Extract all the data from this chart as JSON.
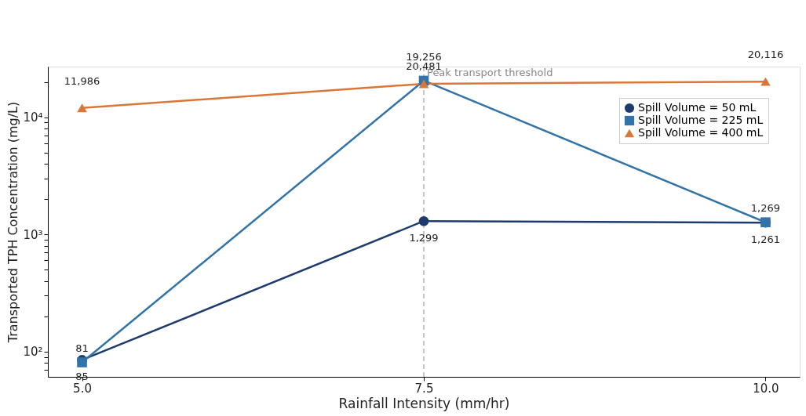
{
  "chart_data": {
    "type": "line",
    "xlabel": "Rainfall Intensity (mm/hr)",
    "ylabel": "Transported TPH Concentration (mg/L)",
    "x": [
      5.0,
      7.5,
      10.0
    ],
    "series": [
      {
        "name": "Spill Volume = 50 mL",
        "color": "#1f3b6e",
        "marker": "circle",
        "values": [
          85,
          1299,
          1261
        ],
        "value_labels": [
          "85",
          "1,299",
          "1,261"
        ]
      },
      {
        "name": "Spill Volume = 225 mL",
        "color": "#3274a8",
        "marker": "square",
        "values": [
          81,
          20481,
          1269
        ],
        "value_labels": [
          "81",
          "20,481",
          "1,269"
        ]
      },
      {
        "name": "Spill Volume = 400 mL",
        "color": "#d9773b",
        "marker": "triangle",
        "values": [
          11986,
          19256,
          20116
        ],
        "value_labels": [
          "11,986",
          "19,256",
          "20,116"
        ]
      }
    ],
    "log": "y",
    "xlim": [
      4.75,
      10.25
    ],
    "ylim": [
      61,
      27000
    ],
    "xticks": [
      {
        "value": 5,
        "label": "5.0"
      },
      {
        "value": 7.5,
        "label": "7.5"
      },
      {
        "value": 10,
        "label": "10.0"
      }
    ],
    "yticks": [
      {
        "value": 70,
        "label": null
      },
      {
        "value": 80,
        "label": null
      },
      {
        "value": 90,
        "label": null
      },
      {
        "value": 100,
        "label": "10²"
      },
      {
        "value": 200,
        "label": null
      },
      {
        "value": 300,
        "label": null
      },
      {
        "value": 400,
        "label": null
      },
      {
        "value": 500,
        "label": null
      },
      {
        "value": 600,
        "label": null
      },
      {
        "value": 700,
        "label": null
      },
      {
        "value": 800,
        "label": null
      },
      {
        "value": 900,
        "label": null
      },
      {
        "value": 1000,
        "label": "10³"
      },
      {
        "value": 2000,
        "label": null
      },
      {
        "value": 3000,
        "label": null
      },
      {
        "value": 4000,
        "label": null
      },
      {
        "value": 5000,
        "label": null
      },
      {
        "value": 6000,
        "label": null
      },
      {
        "value": 7000,
        "label": null
      },
      {
        "value": 8000,
        "label": null
      },
      {
        "value": 9000,
        "label": null
      },
      {
        "value": 10000,
        "label": "10⁴"
      },
      {
        "value": 20000,
        "label": null
      }
    ],
    "ref_lines": [
      {
        "axis": "x",
        "value": 7.5,
        "label": "Peak transport threshold",
        "color": "#aaaaaa",
        "line_style": "dashed"
      }
    ],
    "grid": false,
    "legend": "top right",
    "line_style": "solid"
  }
}
